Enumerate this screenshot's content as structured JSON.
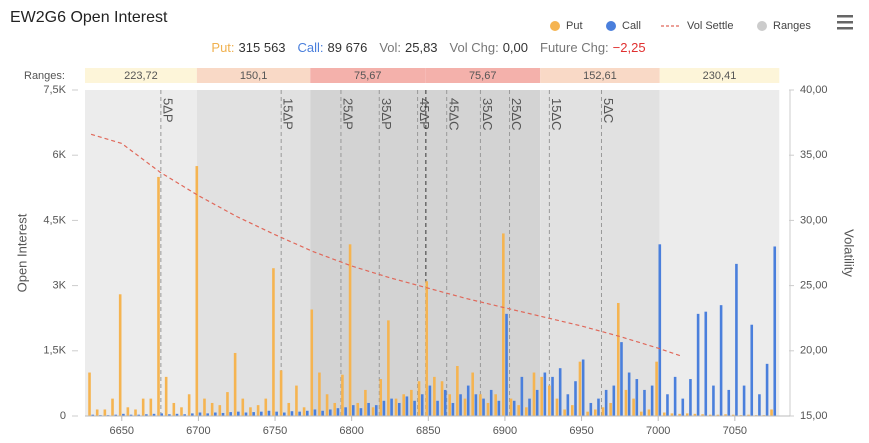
{
  "chart_data": {
    "type": "bar",
    "title": "EW2G6 Open Interest",
    "stats": [
      {
        "label": "Put:",
        "value": "315 563"
      },
      {
        "label": "Call:",
        "value": "89 676"
      },
      {
        "label": "Vol:",
        "value": "25,83"
      },
      {
        "label": "Vol Chg:",
        "value": "0,00"
      },
      {
        "label": "Future Chg:",
        "value": "−2,25"
      }
    ],
    "ylabel": "Open Interest",
    "y2label": "Volatility",
    "ranges_label": "Ranges:",
    "ranges_legend": "Ranges",
    "ranges_legend_color": "#cccccc",
    "ranges": [
      {
        "from": 6626,
        "to": 6699,
        "label": "223,72",
        "color": "#fdf5d9",
        "shade": "#ececec"
      },
      {
        "from": 6699,
        "to": 6773,
        "label": "150,1",
        "color": "#f9d9c6",
        "shade": "#e1e1e1"
      },
      {
        "from": 6773,
        "to": 6848,
        "label": "75,67",
        "color": "#f4b1ab",
        "shade": "#d3d3d3"
      },
      {
        "from": 6848,
        "to": 6923,
        "label": "75,67",
        "color": "#f4b1ab",
        "shade": "#d3d3d3"
      },
      {
        "from": 6923,
        "to": 7001,
        "label": "152,61",
        "color": "#f9d9c6",
        "shade": "#e1e1e1"
      },
      {
        "from": 7001,
        "to": 7079,
        "label": "230,41",
        "color": "#fdf5d9",
        "shade": "#ececec"
      }
    ],
    "delta_lines": [
      {
        "label": "5ΔP",
        "x": 6675.5
      },
      {
        "label": "15ΔP",
        "x": 6754
      },
      {
        "label": "25ΔP",
        "x": 6793
      },
      {
        "label": "35ΔP",
        "x": 6818
      },
      {
        "label": "45ΔP",
        "x": 6843
      },
      {
        "label": "45ΔC",
        "x": 6862
      },
      {
        "label": "35ΔC",
        "x": 6884
      },
      {
        "label": "25ΔC",
        "x": 6903
      },
      {
        "label": "15ΔC",
        "x": 6929
      },
      {
        "label": "5ΔC",
        "x": 6963
      }
    ],
    "atm_strike": 6848.4,
    "xlim": [
      6626,
      7086
    ],
    "xticks": [
      6650,
      6700,
      6750,
      6800,
      6850,
      6900,
      6950,
      7000,
      7050
    ],
    "ylim": [
      0,
      7500
    ],
    "yticks": [
      0,
      {
        "value": 1500,
        "label": "1,5K"
      },
      {
        "value": 3000,
        "label": "3K"
      },
      {
        "value": 4500,
        "label": "4,5K"
      },
      {
        "value": 6000,
        "label": "6K"
      },
      {
        "value": 7500,
        "label": "7,5K"
      }
    ],
    "y2lim": [
      15,
      40
    ],
    "y2ticks": [
      {
        "value": 15,
        "label": "15,00"
      },
      {
        "value": 20,
        "label": "20,00"
      },
      {
        "value": 25,
        "label": "25,00"
      },
      {
        "value": 30,
        "label": "30,00"
      },
      {
        "value": 35,
        "label": "35,00"
      },
      {
        "value": 40,
        "label": "40,00"
      }
    ],
    "x": [
      6630,
      6635,
      6640,
      6645,
      6650,
      6655,
      6660,
      6665,
      6670,
      6675,
      6680,
      6685,
      6690,
      6695,
      6700,
      6705,
      6710,
      6715,
      6720,
      6725,
      6730,
      6735,
      6740,
      6745,
      6750,
      6755,
      6760,
      6765,
      6770,
      6775,
      6780,
      6785,
      6790,
      6795,
      6800,
      6805,
      6810,
      6815,
      6820,
      6825,
      6830,
      6835,
      6840,
      6845,
      6850,
      6855,
      6860,
      6865,
      6870,
      6875,
      6880,
      6885,
      6890,
      6895,
      6900,
      6905,
      6910,
      6915,
      6920,
      6925,
      6930,
      6935,
      6940,
      6945,
      6950,
      6955,
      6960,
      6965,
      6970,
      6975,
      6980,
      6985,
      6990,
      6995,
      7000,
      7005,
      7010,
      7015,
      7020,
      7025,
      7030,
      7035,
      7040,
      7045,
      7050,
      7055,
      7060,
      7065,
      7070,
      7075
    ],
    "series": [
      {
        "name": "Put",
        "color": "#f5b451",
        "values": [
          1000,
          150,
          150,
          400,
          2800,
          200,
          150,
          400,
          400,
          5500,
          900,
          300,
          200,
          500,
          5750,
          400,
          300,
          250,
          550,
          1450,
          400,
          200,
          250,
          400,
          3400,
          1050,
          300,
          700,
          200,
          2450,
          1000,
          500,
          300,
          950,
          3950,
          300,
          600,
          200,
          850,
          2200,
          400,
          500,
          600,
          800,
          3100,
          900,
          800,
          500,
          1150,
          400,
          1000,
          500,
          300,
          500,
          4200,
          400,
          250,
          200,
          1000,
          900,
          700,
          400,
          150,
          250,
          1250,
          100,
          150,
          200,
          300,
          2600,
          600,
          400,
          100,
          150,
          1250,
          80,
          60,
          50,
          60,
          50,
          40,
          30,
          30,
          40,
          30,
          20,
          30,
          20,
          20,
          150
        ]
      },
      {
        "name": "Call",
        "color": "#4a7fdc",
        "values": [
          30,
          20,
          20,
          30,
          50,
          30,
          30,
          40,
          50,
          60,
          40,
          50,
          40,
          60,
          80,
          60,
          80,
          70,
          90,
          100,
          80,
          90,
          100,
          120,
          100,
          80,
          110,
          100,
          120,
          150,
          120,
          150,
          180,
          200,
          250,
          180,
          300,
          250,
          350,
          400,
          300,
          450,
          350,
          500,
          700,
          350,
          600,
          300,
          500,
          700,
          500,
          400,
          600,
          350,
          2350,
          350,
          900,
          400,
          600,
          1000,
          900,
          1100,
          500,
          800,
          1300,
          300,
          400,
          600,
          700,
          1700,
          1000,
          850,
          600,
          700,
          3950,
          500,
          900,
          400,
          850,
          2350,
          2400,
          700,
          2550,
          600,
          3500,
          700,
          2100,
          500,
          1200,
          3900
        ]
      },
      {
        "name": "Vol Settle",
        "color": "#e0685a",
        "axis": "y2",
        "type": "line",
        "dashed": true,
        "x": [
          6630,
          6650,
          6675,
          6700,
          6725,
          6750,
          6775,
          6800,
          6825,
          6850,
          6875,
          6900,
          6925,
          6950,
          6975,
          7000,
          7015
        ],
        "values": [
          36.6,
          35.9,
          33.7,
          31.9,
          30.3,
          28.9,
          27.6,
          26.5,
          25.6,
          24.8,
          24.0,
          23.3,
          22.6,
          21.9,
          21.1,
          20.2,
          19.6
        ]
      }
    ]
  }
}
